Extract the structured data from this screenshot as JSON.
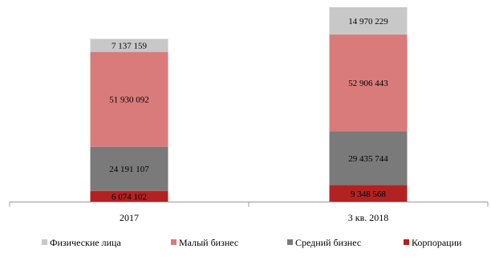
{
  "chart_data": {
    "type": "bar",
    "stacked": true,
    "categories": [
      "2017",
      "3 кв. 2018"
    ],
    "series": [
      {
        "name": "Корпорации",
        "color": "#b22222",
        "values": [
          6074102,
          9348568
        ],
        "labels": [
          "6 074 102",
          "9 348 568"
        ]
      },
      {
        "name": "Средний бизнес",
        "color": "#7a7a7a",
        "values": [
          24191107,
          29435744
        ],
        "labels": [
          "24 191 107",
          "29 435 744"
        ]
      },
      {
        "name": "Малый бизнес",
        "color": "#d97b7b",
        "values": [
          51930092,
          52906443
        ],
        "labels": [
          "51 930 092",
          "52 906 443"
        ]
      },
      {
        "name": "Физические лица",
        "color": "#c8c8c8",
        "values": [
          7137159,
          14970229
        ],
        "labels": [
          "7 137 159",
          "14 970 229"
        ]
      }
    ],
    "legend_order": [
      3,
      2,
      1,
      0
    ],
    "title": "",
    "xlabel": "",
    "ylabel": "",
    "ylim": [
      0,
      106660984
    ],
    "grid": false,
    "legend_position": "bottom"
  }
}
